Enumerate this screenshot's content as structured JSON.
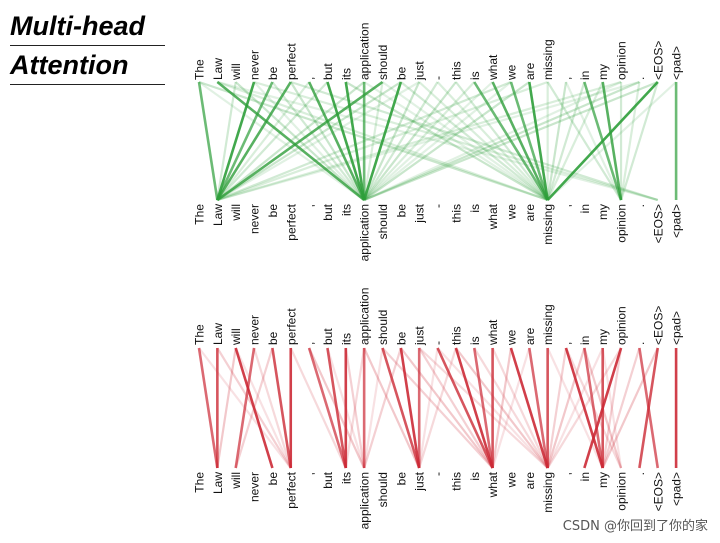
{
  "title": {
    "line1": "Multi-head",
    "line2": "Attention"
  },
  "tokens": [
    "The",
    "Law",
    "will",
    "never",
    "be",
    "perfect",
    ",",
    "but",
    "its",
    "application",
    "should",
    "be",
    "just",
    "-",
    "this",
    "is",
    "what",
    "we",
    "are",
    "missing",
    ",",
    "in",
    "my",
    "opinion",
    ".",
    "<EOS>",
    "<pad>"
  ],
  "panels": [
    {
      "name": "green-attention-panel",
      "color": "#2e9e3a",
      "strong_edges": [
        [
          0,
          1
        ],
        [
          1,
          9
        ],
        [
          3,
          1
        ],
        [
          4,
          1
        ],
        [
          5,
          1
        ],
        [
          8,
          9
        ],
        [
          9,
          9
        ],
        [
          10,
          1
        ],
        [
          11,
          9
        ],
        [
          15,
          19
        ],
        [
          16,
          19
        ],
        [
          18,
          19
        ],
        [
          21,
          23
        ],
        [
          22,
          23
        ],
        [
          25,
          19
        ],
        [
          26,
          26
        ],
        [
          6,
          9
        ],
        [
          7,
          9
        ],
        [
          17,
          19
        ]
      ],
      "faint_edges": [
        [
          0,
          9
        ],
        [
          1,
          19
        ],
        [
          2,
          1
        ],
        [
          2,
          9
        ],
        [
          3,
          9
        ],
        [
          6,
          1
        ],
        [
          7,
          1
        ],
        [
          9,
          1
        ],
        [
          9,
          19
        ],
        [
          10,
          9
        ],
        [
          11,
          19
        ],
        [
          12,
          9
        ],
        [
          12,
          1
        ],
        [
          13,
          19
        ],
        [
          14,
          19
        ],
        [
          14,
          9
        ],
        [
          17,
          9
        ],
        [
          19,
          19
        ],
        [
          19,
          23
        ],
        [
          20,
          19
        ],
        [
          20,
          23
        ],
        [
          22,
          19
        ],
        [
          23,
          23
        ],
        [
          24,
          9
        ],
        [
          24,
          1
        ],
        [
          24,
          23
        ],
        [
          25,
          23
        ],
        [
          25,
          9
        ],
        [
          23,
          9
        ],
        [
          23,
          1
        ],
        [
          21,
          19
        ],
        [
          18,
          9
        ],
        [
          16,
          9
        ],
        [
          15,
          9
        ],
        [
          13,
          9
        ],
        [
          0,
          19
        ],
        [
          1,
          25
        ],
        [
          3,
          25
        ],
        [
          5,
          25
        ],
        [
          8,
          19
        ],
        [
          10,
          19
        ],
        [
          12,
          19
        ],
        [
          4,
          9
        ],
        [
          5,
          9
        ],
        [
          26,
          19
        ],
        [
          19,
          1
        ],
        [
          17,
          1
        ],
        [
          11,
          1
        ]
      ]
    },
    {
      "name": "red-attention-panel",
      "color": "#cc2a36",
      "strong_edges": [
        [
          0,
          1
        ],
        [
          1,
          1
        ],
        [
          2,
          4
        ],
        [
          3,
          2
        ],
        [
          4,
          5
        ],
        [
          5,
          5
        ],
        [
          6,
          8
        ],
        [
          7,
          8
        ],
        [
          8,
          8
        ],
        [
          9,
          9
        ],
        [
          10,
          12
        ],
        [
          11,
          12
        ],
        [
          12,
          12
        ],
        [
          13,
          16
        ],
        [
          14,
          16
        ],
        [
          15,
          16
        ],
        [
          16,
          16
        ],
        [
          17,
          19
        ],
        [
          18,
          19
        ],
        [
          19,
          19
        ],
        [
          20,
          22
        ],
        [
          21,
          22
        ],
        [
          22,
          22
        ],
        [
          23,
          21
        ],
        [
          24,
          25
        ],
        [
          25,
          24
        ],
        [
          26,
          26
        ]
      ],
      "faint_edges": [
        [
          2,
          5
        ],
        [
          3,
          5
        ],
        [
          1,
          5
        ],
        [
          6,
          9
        ],
        [
          7,
          9
        ],
        [
          9,
          8
        ],
        [
          10,
          16
        ],
        [
          11,
          16
        ],
        [
          13,
          12
        ],
        [
          14,
          12
        ],
        [
          12,
          16
        ],
        [
          17,
          16
        ],
        [
          18,
          16
        ],
        [
          15,
          19
        ],
        [
          20,
          19
        ],
        [
          21,
          19
        ],
        [
          22,
          19
        ],
        [
          23,
          19
        ],
        [
          23,
          22
        ],
        [
          21,
          23
        ],
        [
          22,
          23
        ],
        [
          20,
          23
        ],
        [
          24,
          22
        ],
        [
          25,
          22
        ],
        [
          19,
          22
        ],
        [
          16,
          19
        ],
        [
          8,
          9
        ],
        [
          9,
          12
        ],
        [
          10,
          9
        ],
        [
          5,
          8
        ],
        [
          4,
          2
        ],
        [
          14,
          19
        ],
        [
          13,
          19
        ],
        [
          12,
          19
        ],
        [
          11,
          9
        ],
        [
          2,
          1
        ],
        [
          0,
          5
        ]
      ]
    }
  ],
  "watermark": "CSDN @你回到了你的家"
}
